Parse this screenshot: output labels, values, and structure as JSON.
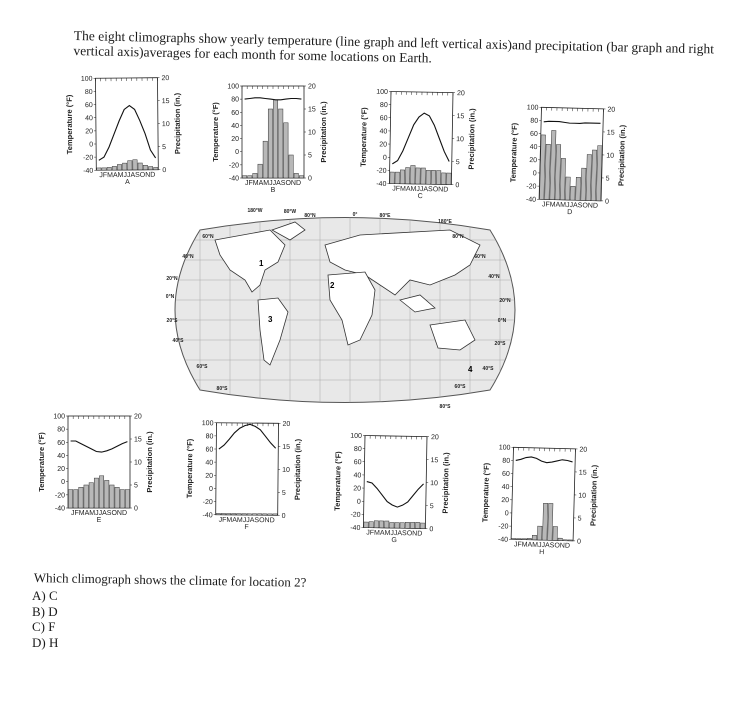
{
  "intro": "The eight climographs show yearly temperature (line graph and left vertical axis)and precipitation (bar graph and right vertical axis)averages for each month for some locations on Earth.",
  "axes": {
    "temp_label": "Temperature (°F)",
    "precip_label": "Precipitation (in.)",
    "temp_ticks": [
      "100",
      "80",
      "60",
      "40",
      "20",
      "0",
      "-20",
      "-40"
    ],
    "precip_ticks": [
      "20",
      "15",
      "10",
      "5",
      "0"
    ],
    "months": "JFMAMJJASOND"
  },
  "chart_data": [
    {
      "type": "bar+line",
      "letter": "A",
      "temperature": [
        -25,
        -20,
        -5,
        15,
        35,
        52,
        58,
        52,
        35,
        15,
        -10,
        -22
      ],
      "precipitation": [
        0.5,
        0.5,
        0.6,
        0.8,
        1.2,
        1.5,
        2,
        2.2,
        1.5,
        1,
        0.7,
        0.5
      ]
    },
    {
      "type": "bar+line",
      "letter": "B",
      "temperature": [
        80,
        81,
        82,
        82,
        81,
        80,
        79,
        79,
        80,
        81,
        81,
        80
      ],
      "precipitation": [
        0.5,
        0.5,
        1,
        3,
        8,
        15,
        17,
        15,
        12,
        5,
        1,
        0.5
      ]
    },
    {
      "type": "bar+line",
      "letter": "C",
      "temperature": [
        -10,
        -5,
        10,
        30,
        50,
        62,
        68,
        64,
        50,
        30,
        10,
        -5
      ],
      "precipitation": [
        2.5,
        2.5,
        3,
        3.5,
        4,
        3.5,
        3.5,
        3,
        3,
        3,
        2.5,
        2.5
      ]
    },
    {
      "type": "bar+line",
      "letter": "D",
      "temperature": [
        78,
        79,
        79,
        79,
        78,
        77,
        77,
        77,
        78,
        78,
        78,
        78
      ],
      "precipitation": [
        14,
        12,
        15,
        12,
        9,
        5,
        3,
        5,
        7,
        10,
        11,
        12
      ]
    },
    {
      "type": "bar+line",
      "letter": "E",
      "temperature": [
        62,
        62,
        58,
        54,
        50,
        46,
        45,
        47,
        50,
        54,
        58,
        61
      ],
      "precipitation": [
        4,
        4,
        4.5,
        5,
        5.5,
        6.5,
        7,
        6,
        5,
        4.5,
        4,
        4
      ]
    },
    {
      "type": "bar+line",
      "letter": "F",
      "temperature": [
        60,
        66,
        75,
        85,
        92,
        96,
        98,
        95,
        90,
        80,
        70,
        62
      ],
      "precipitation": [
        0.3,
        0.3,
        0.3,
        0.3,
        0.3,
        0.3,
        0.3,
        0.3,
        0.3,
        0.3,
        0.3,
        0.3
      ]
    },
    {
      "type": "bar+line",
      "letter": "G",
      "temperature": [
        30,
        28,
        20,
        10,
        0,
        -5,
        -8,
        -5,
        0,
        10,
        20,
        28
      ],
      "precipitation": [
        1.2,
        1.3,
        1.5,
        1.5,
        1.5,
        1.2,
        1.2,
        1.2,
        1.3,
        1.3,
        1.3,
        1.2
      ]
    },
    {
      "type": "bar+line",
      "letter": "H",
      "temperature": [
        80,
        82,
        85,
        86,
        84,
        80,
        78,
        79,
        81,
        83,
        82,
        80
      ],
      "precipitation": [
        0.2,
        0.2,
        0.2,
        0.3,
        1,
        3,
        8,
        8,
        3,
        0.5,
        0.2,
        0.2
      ]
    }
  ],
  "map": {
    "top_labels": [
      "180°W",
      "80°W",
      "80°N",
      "0°",
      "80°E",
      "180°E"
    ],
    "left_lat": [
      "60°N",
      "40°N",
      "20°N",
      "0°N",
      "20°S",
      "40°S",
      "60°S"
    ],
    "right_lat": [
      "80°N",
      "60°N",
      "40°N",
      "20°N",
      "0°N",
      "20°S",
      "40°S",
      "60°S"
    ],
    "bottom_labels": [
      "80°S",
      "80°S"
    ],
    "locations": [
      "1",
      "2",
      "3",
      "4"
    ]
  },
  "question": "Which climograph shows the climate for location 2?",
  "choices": [
    "A) C",
    "B) D",
    "C) F",
    "D) H"
  ]
}
